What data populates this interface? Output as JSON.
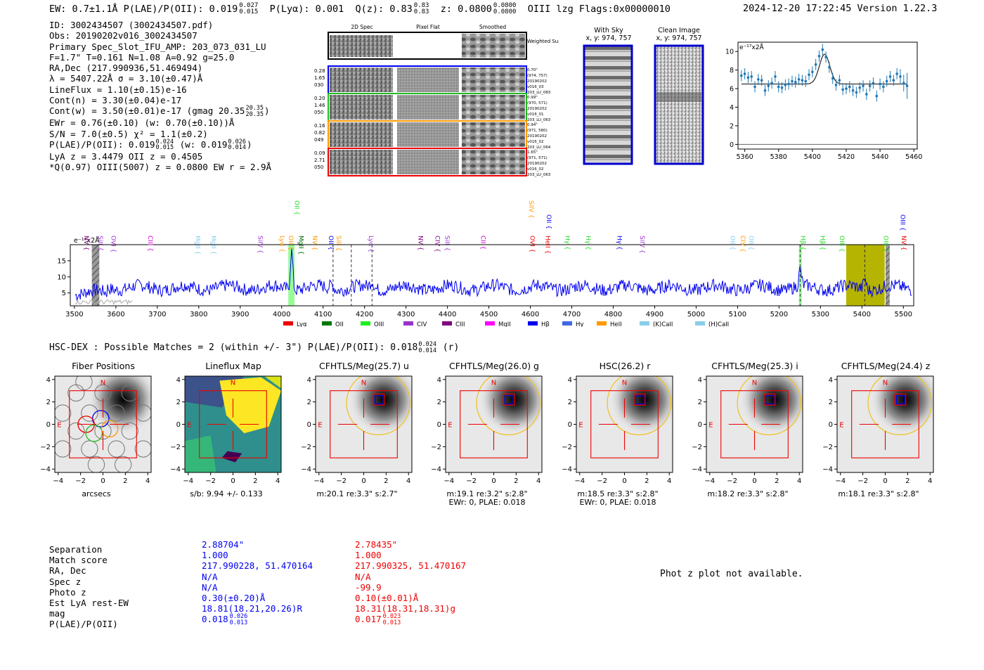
{
  "header": {
    "left": "EW: 0.7±1.1Å  P(LAE)/P(OII): 0.019",
    "left_sup": "0.027",
    "left_sub": "0.015",
    "plya": "P(Lyα): 0.001",
    "qz": "Q(z): 0.83",
    "qz_sup": "0.83",
    "qz_sub": "0.83",
    "z": "z: 0.0800",
    "z_sup": "0.0800",
    "z_sub": "0.0800",
    "line": "OIII   lzg   Flags:0x00000010",
    "datetime": "2024-12-20 17:22:45  Version 1.22.3"
  },
  "info": {
    "l1": "ID: 3002434507 (3002434507.pdf)",
    "l2": "Obs: 20190202v016_3002434507",
    "l3": "Primary Spec_Slot_IFU_AMP: 203_073_031_LU",
    "l4": "F=1.7\"  T=0.161  N=1.08  A=0.92  g=25.0",
    "l5": "RA,Dec (217.990936,51.469494)",
    "l6": "λ = 5407.22Å  σ = 3.10(±0.47)Å",
    "l7": "LineFlux = 1.10(±0.15)e-16",
    "l8": "Cont(n) = 3.30(±0.04)e-17",
    "l9": "Cont(w) = 3.50(±0.01)e-17 (gmag 20.35",
    "l9_sup": "20.35",
    "l9_sub": "20.35",
    "l9_end": ")",
    "l10": "EWr = 0.76(±0.10) (w: 0.70(±0.10))Å",
    "l11": "S/N = 7.0(±0.5)  χ² = 1.1(±0.2)",
    "l12": "P(LAE)/P(OII): 0.019",
    "l12_sup": "0.024",
    "l12_sub": "0.015",
    "l12_b": " (w: 0.019",
    "l12_sup2": "0.026",
    "l12_sub2": "0.014",
    "l12_end": ")",
    "l13": "LyA z = 3.4479  OII z = 0.4505",
    "l14": "*Q(0.97) OIII(5007) z = 0.0800  EW r = 2.9Å"
  },
  "cutouts": {
    "col_titles": [
      "2D Spec",
      "Pixel Flat",
      "Smoothed"
    ],
    "weighted_sum": "Weighted Sum",
    "rows": [
      {
        "left": [
          "0.28",
          "1.65",
          "030"
        ],
        "right": [
          "0.70\"",
          "(974, 757)",
          "20190202",
          "v016_03",
          "203_LU_083"
        ],
        "color": "#0000ee"
      },
      {
        "left": [
          "0.20",
          "1.46",
          "050"
        ],
        "right": [
          "0.99\"",
          "(970, 571)",
          "20190202",
          "v016_01",
          "203_LU_063"
        ],
        "color": "#22bb22"
      },
      {
        "left": [
          "0.16",
          "0.82",
          "049"
        ],
        "right": [
          "0.94\"",
          "(971, 580)",
          "20190202",
          "v016_02",
          "203_LU_064"
        ],
        "color": "#ff9900"
      },
      {
        "left": [
          "0.09",
          "2.71",
          "050"
        ],
        "right": [
          "1.65\"",
          "(971, 571)",
          "20190202",
          "v016_02",
          "203_LU_063"
        ],
        "color": "#ee0000"
      }
    ]
  },
  "sky": {
    "with_sky": "With Sky",
    "with_sky_xy": "x, y: 974, 757",
    "clean": "Clean Image",
    "clean_xy": "x, y: 974, 757"
  },
  "zoom_chart": {
    "type": "scatter",
    "unit": "e⁻¹⁷x2Å",
    "xlim": [
      5356,
      5462
    ],
    "ylim": [
      -0.5,
      11
    ],
    "xticks": [
      5360,
      5380,
      5400,
      5420,
      5440,
      5460
    ],
    "yticks": [
      0,
      2,
      4,
      6,
      8,
      10
    ],
    "x": [
      5358,
      5360,
      5362,
      5364,
      5366,
      5368,
      5370,
      5372,
      5374,
      5376,
      5378,
      5380,
      5382,
      5384,
      5386,
      5388,
      5390,
      5392,
      5394,
      5396,
      5398,
      5400,
      5402,
      5404,
      5406,
      5408,
      5410,
      5412,
      5414,
      5416,
      5418,
      5420,
      5422,
      5424,
      5426,
      5428,
      5430,
      5432,
      5434,
      5436,
      5438,
      5440,
      5442,
      5444,
      5446,
      5448,
      5450,
      5452,
      5454,
      5456
    ],
    "y": [
      7.4,
      7.6,
      7.2,
      7.3,
      6.2,
      7.0,
      6.9,
      5.8,
      6.3,
      6.6,
      7.3,
      6.2,
      6.1,
      6.4,
      6.5,
      6.8,
      6.7,
      7.0,
      6.9,
      6.8,
      7.5,
      7.8,
      8.6,
      9.5,
      10.2,
      9.4,
      8.3,
      7.1,
      6.4,
      6.9,
      5.9,
      6.0,
      6.2,
      5.8,
      5.6,
      6.1,
      6.3,
      5.4,
      6.3,
      6.6,
      5.2,
      6.5,
      6.2,
      6.8,
      7.3,
      6.9,
      7.6,
      7.3,
      6.6,
      6.3
    ],
    "err": [
      0.6,
      0.6,
      0.6,
      0.6,
      0.6,
      0.6,
      0.6,
      0.6,
      0.6,
      0.6,
      0.6,
      0.6,
      0.6,
      0.6,
      0.6,
      0.6,
      0.6,
      0.6,
      0.6,
      0.6,
      0.6,
      0.6,
      0.6,
      0.6,
      0.6,
      0.6,
      0.6,
      0.6,
      0.6,
      0.6,
      0.6,
      0.6,
      0.6,
      0.6,
      0.6,
      0.6,
      0.6,
      0.6,
      0.6,
      0.6,
      0.6,
      0.6,
      0.6,
      0.6,
      0.6,
      0.6,
      0.6,
      0.8,
      0.9,
      1.4
    ],
    "fit_continuum": 6.5,
    "fit_peak": 3.2,
    "fit_center": 5407.2,
    "fit_sigma": 3.1,
    "point_color": "#1f77b4"
  },
  "full_spectrum": {
    "type": "line",
    "unit": "e⁻¹⁷x2Å",
    "xlim": [
      3490,
      5525
    ],
    "ylim": [
      1,
      20
    ],
    "xticks": [
      3500,
      3600,
      3700,
      3800,
      3900,
      4000,
      4100,
      4200,
      4300,
      4400,
      4500,
      4600,
      4700,
      4800,
      4900,
      5000,
      5100,
      5200,
      5300,
      5400,
      5500
    ],
    "yticks": [
      5,
      10,
      15
    ],
    "line_color": "#0000ee",
    "peaks": [
      {
        "x": 4024,
        "amp": 12,
        "w": 3
      },
      {
        "x": 5251,
        "amp": 5,
        "w": 3
      },
      {
        "x": 5407,
        "amp": 3.5,
        "w": 3
      },
      {
        "x": 4121,
        "amp": 1.5,
        "w": 4
      },
      {
        "x": 4218,
        "amp": 2,
        "w": 4
      }
    ],
    "baseline": 6.6,
    "green_bands": [
      [
        4016,
        4031
      ],
      [
        5248,
        5255
      ]
    ],
    "olive_band": [
      5362,
      5455
    ],
    "grey_band": [
      3542,
      3560
    ],
    "hatched_band": [
      5457,
      5467
    ],
    "dashed_lines": [
      4124,
      4168,
      4218,
      5251,
      5407
    ],
    "labels": [
      {
        "t": "NV",
        "x": 3524,
        "c": "#800080",
        "row": 2
      },
      {
        "t": "SiII",
        "x": 3558,
        "c": "#9933cc",
        "row": 2
      },
      {
        "t": "OVI",
        "x": 3589,
        "c": "#9933cc",
        "row": 2
      },
      {
        "t": "CIII",
        "x": 3678,
        "c": "#cc00cc",
        "row": 2
      },
      {
        "t": "MgII",
        "x": 3793,
        "c": "#87ceeb",
        "row": 2
      },
      {
        "t": "MgII",
        "x": 3831,
        "c": "#87ceeb",
        "row": 2
      },
      {
        "t": "SiIV",
        "x": 3944,
        "c": "#9933cc",
        "row": 2
      },
      {
        "t": "Lyα",
        "x": 3996,
        "c": "#ff9900",
        "row": 2
      },
      {
        "t": "OII",
        "x": 4017,
        "c": "#ff9900",
        "row": 2
      },
      {
        "t": "OII",
        "x": 4032,
        "c": "#22dd22",
        "row": 0
      },
      {
        "t": "MgII",
        "x": 4042,
        "c": "#006400",
        "row": 2
      },
      {
        "t": "NV",
        "x": 4075,
        "c": "#ff9900",
        "row": 2
      },
      {
        "t": "OII",
        "x": 4114,
        "c": "#0000ee",
        "row": 2
      },
      {
        "t": "SiII",
        "x": 4133,
        "c": "#ff9900",
        "row": 2
      },
      {
        "t": "Lyα",
        "x": 4211,
        "c": "#9933cc",
        "row": 2
      },
      {
        "t": "NV",
        "x": 4330,
        "c": "#800080",
        "row": 2
      },
      {
        "t": "CIV",
        "x": 4371,
        "c": "#800080",
        "row": 2
      },
      {
        "t": "SiII",
        "x": 4395,
        "c": "#9933cc",
        "row": 2
      },
      {
        "t": "CII",
        "x": 4481,
        "c": "#cc00cc",
        "row": 2
      },
      {
        "t": "SiIV",
        "x": 4597,
        "c": "#ff9900",
        "row": 0
      },
      {
        "t": "OVI",
        "x": 4600,
        "c": "#ee0000",
        "row": 2
      },
      {
        "t": "OII",
        "x": 4640,
        "c": "#0000ee",
        "row": 1
      },
      {
        "t": "HeII",
        "x": 4637,
        "c": "#ee0000",
        "row": 2
      },
      {
        "t": "Hγ",
        "x": 4685,
        "c": "#22dd22",
        "row": 2
      },
      {
        "t": "Hγ",
        "x": 4735,
        "c": "#22dd22",
        "row": 2
      },
      {
        "t": "Hγ",
        "x": 4810,
        "c": "#0000ee",
        "row": 2
      },
      {
        "t": "SiIV",
        "x": 4865,
        "c": "#9933cc",
        "row": 2
      },
      {
        "t": "OII",
        "x": 5083,
        "c": "#87ceeb",
        "row": 2
      },
      {
        "t": "CIV",
        "x": 5108,
        "c": "#ff9900",
        "row": 2
      },
      {
        "t": "OII",
        "x": 5128,
        "c": "#87ceeb",
        "row": 2
      },
      {
        "t": "Hβ",
        "x": 5253,
        "c": "#22dd22",
        "row": 2
      },
      {
        "t": "Hβ",
        "x": 5300,
        "c": "#22dd22",
        "row": 2
      },
      {
        "t": "OIII",
        "x": 5347,
        "c": "#22dd22",
        "row": 2
      },
      {
        "t": "OIII",
        "x": 5453,
        "c": "#22dd22",
        "row": 2
      },
      {
        "t": "OIII",
        "x": 5494,
        "c": "#0000ee",
        "row": 1
      },
      {
        "t": "NV",
        "x": 5496,
        "c": "#ee0000",
        "row": 2
      }
    ],
    "legend": [
      {
        "t": "Lyα",
        "c": "#ee0000"
      },
      {
        "t": "OII",
        "c": "#007700"
      },
      {
        "t": "OIII",
        "c": "#22ee22"
      },
      {
        "t": "CIV",
        "c": "#9933cc"
      },
      {
        "t": "CIII",
        "c": "#800080"
      },
      {
        "t": "MgII",
        "c": "#ff00ff"
      },
      {
        "t": "Hβ",
        "c": "#0000ee"
      },
      {
        "t": "Hγ",
        "c": "#4169e1"
      },
      {
        "t": "HeII",
        "c": "#ff9900"
      },
      {
        "t": "(K)CaII",
        "c": "#87ceeb"
      },
      {
        "t": "(H)CaII",
        "c": "#87ceeb"
      }
    ]
  },
  "hsc": {
    "line": "HSC-DEX : Possible Matches = 2 (within +/- 3\")  P(LAE)/P(OII): 0.018",
    "sup": "0.024",
    "sub": "0.014",
    "end": " (r)"
  },
  "panels": [
    {
      "title": "Fiber Positions",
      "foot1": "arcsecs",
      "foot2": ""
    },
    {
      "title": "Lineflux Map",
      "foot1": "s/b: 9.94 +/- 0.133",
      "foot2": ""
    },
    {
      "title": "CFHTLS/Meg(25.7) u",
      "foot1": "m:20.1  re:3.3\"  s:2.7\"",
      "foot2": ""
    },
    {
      "title": "CFHTLS/Meg(26.0) g",
      "foot1": "m:19.1  re:3.2\"  s:2.8\"",
      "foot2": "EWr: 0, PLAE: 0.018"
    },
    {
      "title": "HSC(26.2) r",
      "foot1": "m:18.5  re:3.3\"  s:2.8\"",
      "foot2": "EWr: 0, PLAE: 0.018"
    },
    {
      "title": "CFHTLS/Meg(25.3) i",
      "foot1": "m:18.2  re:3.3\"  s:2.8\"",
      "foot2": ""
    },
    {
      "title": "CFHTLS/Meg(24.4) z",
      "foot1": "m:18.1  re:3.3\"  s:2.8\"",
      "foot2": ""
    }
  ],
  "panel_axis": {
    "ticks": [
      -4,
      -2,
      0,
      2,
      4
    ],
    "n": "N",
    "e": "E"
  },
  "matches": {
    "labels": [
      "Separation",
      "Match score",
      "RA, Dec",
      "Spec z",
      "Photo z",
      "Est LyA rest-EW",
      "mag",
      "P(LAE)/P(OII)"
    ],
    "m1": [
      "2.88704\"",
      "1.000",
      "217.990228, 51.470164",
      "N/A",
      "N/A",
      "0.30(±0.20)Å",
      "18.81(18.21,20.26)R",
      "0.018"
    ],
    "m1_sup": "0.026",
    "m1_sub": "0.013",
    "m2": [
      "2.78435\"",
      "1.000",
      "217.990325, 51.470167",
      "N/A",
      "-99.9",
      "0.10(±0.01)Å",
      "18.31(18.31,18.31)g",
      "0.017"
    ],
    "m2_sup": "0.023",
    "m2_sub": "0.013"
  },
  "photz_note": "Phot z plot not available."
}
